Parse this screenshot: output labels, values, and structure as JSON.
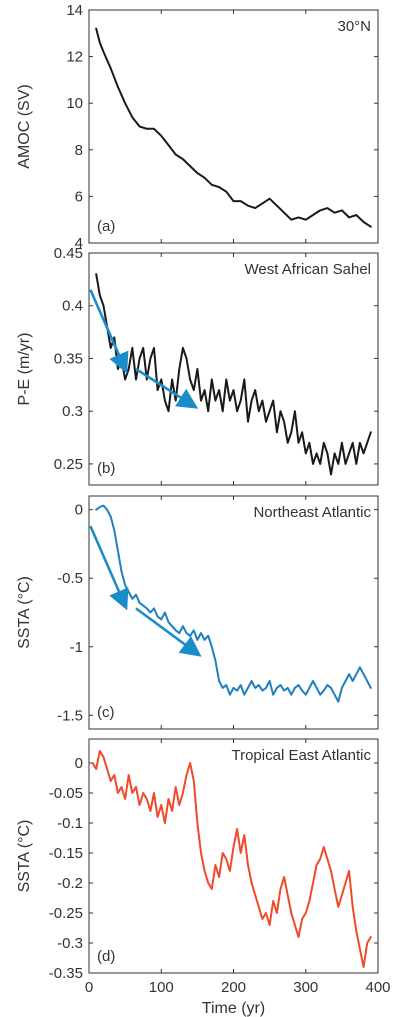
{
  "chart_data": [
    {
      "type": "line",
      "panel_label": "(a)",
      "title": "30°N",
      "xlabel": "",
      "ylabel": "AMOC (SV)",
      "xlim": [
        0,
        400
      ],
      "ylim": [
        4,
        14
      ],
      "yticks": [
        4,
        6,
        8,
        10,
        12,
        14
      ],
      "ytick_labels": [
        "4",
        "6",
        "8",
        "10",
        "12",
        "14"
      ],
      "line_color": "#1a1a1a",
      "series": [
        {
          "x": [
            10,
            15,
            20,
            30,
            40,
            50,
            60,
            70,
            80,
            90,
            100,
            110,
            120,
            130,
            140,
            150,
            160,
            170,
            180,
            190,
            200,
            210,
            220,
            230,
            240,
            250,
            260,
            270,
            280,
            290,
            300,
            310,
            320,
            330,
            340,
            350,
            360,
            370,
            380,
            390
          ],
          "values": [
            13.2,
            12.6,
            12.2,
            11.5,
            10.7,
            10.0,
            9.4,
            9.0,
            8.9,
            8.9,
            8.6,
            8.2,
            7.8,
            7.6,
            7.3,
            7.0,
            6.8,
            6.5,
            6.4,
            6.2,
            5.8,
            5.8,
            5.6,
            5.5,
            5.7,
            5.9,
            5.6,
            5.3,
            5.0,
            5.1,
            5.0,
            5.2,
            5.4,
            5.5,
            5.3,
            5.4,
            5.1,
            5.2,
            4.9,
            4.7
          ]
        }
      ]
    },
    {
      "type": "line",
      "panel_label": "(b)",
      "title": "West African Sahel",
      "xlabel": "",
      "ylabel": "P-E (m/yr)",
      "xlim": [
        0,
        400
      ],
      "ylim": [
        0.23,
        0.45
      ],
      "yticks": [
        0.25,
        0.3,
        0.35,
        0.4,
        0.45
      ],
      "ytick_labels": [
        "0.25",
        "0.3",
        "0.35",
        "0.4",
        "0.45"
      ],
      "line_color": "#1a1a1a",
      "series": [
        {
          "x": [
            10,
            15,
            20,
            25,
            30,
            35,
            40,
            45,
            50,
            55,
            60,
            65,
            70,
            75,
            80,
            85,
            90,
            95,
            100,
            105,
            110,
            115,
            120,
            125,
            130,
            135,
            140,
            145,
            150,
            155,
            160,
            165,
            170,
            175,
            180,
            185,
            190,
            195,
            200,
            205,
            210,
            215,
            220,
            225,
            230,
            235,
            240,
            245,
            250,
            255,
            260,
            265,
            270,
            275,
            280,
            285,
            290,
            295,
            300,
            305,
            310,
            315,
            320,
            325,
            330,
            335,
            340,
            345,
            350,
            355,
            360,
            365,
            370,
            375,
            380,
            385,
            390
          ],
          "values": [
            0.43,
            0.41,
            0.4,
            0.38,
            0.36,
            0.37,
            0.34,
            0.35,
            0.33,
            0.34,
            0.36,
            0.33,
            0.35,
            0.36,
            0.33,
            0.35,
            0.36,
            0.32,
            0.33,
            0.31,
            0.3,
            0.33,
            0.31,
            0.34,
            0.36,
            0.35,
            0.33,
            0.32,
            0.34,
            0.31,
            0.32,
            0.3,
            0.33,
            0.31,
            0.32,
            0.3,
            0.33,
            0.31,
            0.32,
            0.3,
            0.31,
            0.33,
            0.29,
            0.31,
            0.32,
            0.3,
            0.31,
            0.29,
            0.3,
            0.31,
            0.28,
            0.3,
            0.29,
            0.27,
            0.28,
            0.3,
            0.27,
            0.28,
            0.26,
            0.27,
            0.25,
            0.26,
            0.25,
            0.27,
            0.26,
            0.24,
            0.26,
            0.25,
            0.27,
            0.25,
            0.26,
            0.27,
            0.25,
            0.27,
            0.26,
            0.27,
            0.28
          ]
        }
      ],
      "arrows": [
        {
          "from": [
            2,
            0.415
          ],
          "to": [
            50,
            0.34
          ]
        },
        {
          "from": [
            65,
            0.34
          ],
          "to": [
            145,
            0.305
          ]
        }
      ],
      "arrow_color": "#1a8cc8"
    },
    {
      "type": "line",
      "panel_label": "(c)",
      "title": "Northeast Atlantic",
      "xlabel": "",
      "ylabel": "SSTA (°C)",
      "xlim": [
        0,
        400
      ],
      "ylim": [
        -1.6,
        0.1
      ],
      "yticks": [
        -1.5,
        -1,
        -0.5,
        0
      ],
      "ytick_labels": [
        "-1.5",
        "-1",
        "-0.5",
        "0"
      ],
      "line_color": "#1f7fc0",
      "series": [
        {
          "x": [
            10,
            15,
            20,
            25,
            30,
            35,
            40,
            45,
            50,
            55,
            60,
            65,
            70,
            75,
            80,
            85,
            90,
            95,
            100,
            105,
            110,
            115,
            120,
            125,
            130,
            135,
            140,
            145,
            150,
            155,
            160,
            165,
            170,
            175,
            180,
            185,
            190,
            195,
            200,
            205,
            210,
            215,
            220,
            225,
            230,
            235,
            240,
            245,
            250,
            255,
            260,
            265,
            270,
            275,
            280,
            285,
            290,
            295,
            300,
            305,
            310,
            315,
            320,
            325,
            330,
            335,
            340,
            345,
            350,
            355,
            360,
            365,
            370,
            375,
            380,
            385,
            390
          ],
          "values": [
            0.0,
            0.02,
            0.03,
            0.0,
            -0.05,
            -0.15,
            -0.3,
            -0.45,
            -0.55,
            -0.6,
            -0.65,
            -0.62,
            -0.68,
            -0.7,
            -0.72,
            -0.75,
            -0.72,
            -0.78,
            -0.8,
            -0.75,
            -0.82,
            -0.85,
            -0.88,
            -0.9,
            -0.85,
            -0.9,
            -0.92,
            -0.88,
            -0.95,
            -0.9,
            -0.95,
            -0.92,
            -1.0,
            -1.1,
            -1.25,
            -1.3,
            -1.28,
            -1.35,
            -1.3,
            -1.32,
            -1.28,
            -1.35,
            -1.3,
            -1.25,
            -1.3,
            -1.28,
            -1.32,
            -1.3,
            -1.25,
            -1.35,
            -1.3,
            -1.28,
            -1.32,
            -1.3,
            -1.35,
            -1.3,
            -1.28,
            -1.32,
            -1.35,
            -1.3,
            -1.25,
            -1.3,
            -1.35,
            -1.32,
            -1.28,
            -1.3,
            -1.35,
            -1.4,
            -1.3,
            -1.25,
            -1.2,
            -1.25,
            -1.2,
            -1.15,
            -1.2,
            -1.25,
            -1.3
          ]
        }
      ],
      "arrows": [
        {
          "from": [
            2,
            -0.12
          ],
          "to": [
            50,
            -0.7
          ]
        },
        {
          "from": [
            65,
            -0.72
          ],
          "to": [
            150,
            -1.05
          ]
        }
      ],
      "arrow_color": "#1a8cc8"
    },
    {
      "type": "line",
      "panel_label": "(d)",
      "title": "Tropical East Atlantic",
      "xlabel": "Time (yr)",
      "ylabel": "SSTA (°C)",
      "xlim": [
        0,
        400
      ],
      "xticks": [
        0,
        100,
        200,
        300,
        400
      ],
      "xtick_labels": [
        "0",
        "100",
        "200",
        "300",
        "400"
      ],
      "ylim": [
        -0.35,
        0.04
      ],
      "yticks": [
        -0.35,
        -0.3,
        -0.25,
        -0.2,
        -0.15,
        -0.1,
        -0.05,
        0
      ],
      "ytick_labels": [
        "-0.35",
        "-0.3",
        "-0.25",
        "-0.2",
        "-0.15",
        "-0.1",
        "-0.05",
        "0"
      ],
      "line_color": "#f04a2a",
      "series": [
        {
          "x": [
            5,
            10,
            15,
            20,
            25,
            30,
            35,
            40,
            45,
            50,
            55,
            60,
            65,
            70,
            75,
            80,
            85,
            90,
            95,
            100,
            105,
            110,
            115,
            120,
            125,
            130,
            135,
            140,
            145,
            150,
            155,
            160,
            165,
            170,
            175,
            180,
            185,
            190,
            195,
            200,
            205,
            210,
            215,
            220,
            225,
            230,
            235,
            240,
            245,
            250,
            255,
            260,
            265,
            270,
            275,
            280,
            285,
            290,
            295,
            300,
            305,
            310,
            315,
            320,
            325,
            330,
            335,
            340,
            345,
            350,
            355,
            360,
            365,
            370,
            375,
            380,
            385,
            390
          ],
          "values": [
            0.0,
            -0.01,
            0.02,
            0.01,
            -0.01,
            -0.03,
            -0.02,
            -0.05,
            -0.04,
            -0.06,
            -0.02,
            -0.05,
            -0.04,
            -0.07,
            -0.05,
            -0.06,
            -0.08,
            -0.05,
            -0.09,
            -0.07,
            -0.1,
            -0.06,
            -0.08,
            -0.04,
            -0.07,
            -0.05,
            -0.02,
            0.0,
            -0.03,
            -0.1,
            -0.15,
            -0.18,
            -0.2,
            -0.21,
            -0.17,
            -0.19,
            -0.15,
            -0.16,
            -0.18,
            -0.14,
            -0.11,
            -0.15,
            -0.12,
            -0.17,
            -0.2,
            -0.22,
            -0.24,
            -0.26,
            -0.25,
            -0.27,
            -0.23,
            -0.25,
            -0.21,
            -0.19,
            -0.22,
            -0.25,
            -0.27,
            -0.29,
            -0.26,
            -0.25,
            -0.23,
            -0.2,
            -0.17,
            -0.16,
            -0.14,
            -0.16,
            -0.18,
            -0.21,
            -0.24,
            -0.22,
            -0.2,
            -0.18,
            -0.24,
            -0.28,
            -0.31,
            -0.34,
            -0.3,
            -0.29
          ]
        }
      ]
    }
  ]
}
